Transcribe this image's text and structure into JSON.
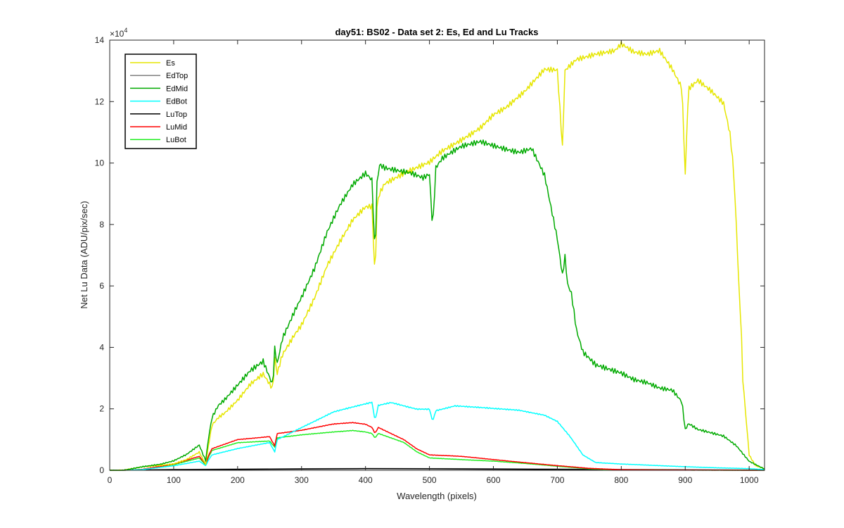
{
  "chart_data": {
    "type": "line",
    "title": "day51: BS02 - Data set 2: Es, Ed and Lu Tracks",
    "xlabel": "Wavelength (pixels)",
    "ylabel": "Net Lu Data (ADU/pix/sec)",
    "xlim": [
      0,
      1024
    ],
    "ylim": [
      0,
      140000
    ],
    "xticks": [
      0,
      100,
      200,
      300,
      400,
      500,
      600,
      700,
      800,
      900,
      1000
    ],
    "yticks": [
      0,
      20000,
      40000,
      60000,
      80000,
      100000,
      120000,
      140000
    ],
    "ytick_labels": [
      "0",
      "2",
      "4",
      "6",
      "8",
      "10",
      "12",
      "14"
    ],
    "y_multiplier": "×10",
    "y_exponent": "4",
    "legend_position": "top-left",
    "series": [
      {
        "name": "Es",
        "color": "#e6e600",
        "x": [
          0,
          20,
          50,
          80,
          100,
          120,
          140,
          150,
          155,
          160,
          170,
          180,
          200,
          220,
          240,
          255,
          258,
          262,
          270,
          290,
          300,
          320,
          340,
          360,
          380,
          400,
          410,
          415,
          418,
          422,
          430,
          450,
          470,
          490,
          500,
          520,
          550,
          580,
          600,
          620,
          650,
          680,
          700,
          708,
          712,
          716,
          730,
          760,
          790,
          800,
          820,
          840,
          860,
          880,
          895,
          900,
          905,
          920,
          940,
          960,
          970,
          975,
          980,
          985,
          987,
          990,
          1000,
          1010,
          1024
        ],
        "y": [
          0,
          0,
          1000,
          1500,
          2000,
          3500,
          6000,
          2000,
          9000,
          15000,
          17500,
          19000,
          23000,
          28000,
          31000,
          26000,
          36000,
          31000,
          37000,
          44000,
          47000,
          56000,
          67000,
          75000,
          82000,
          86000,
          86000,
          62000,
          86000,
          90000,
          93000,
          95000,
          97000,
          99000,
          100000,
          104000,
          108000,
          112000,
          116000,
          118000,
          123000,
          130000,
          130000,
          105000,
          130000,
          131000,
          134000,
          136000,
          137000,
          139000,
          136000,
          135000,
          136000,
          130000,
          124000,
          96000,
          124000,
          127000,
          124000,
          120000,
          110000,
          100000,
          80000,
          55000,
          50000,
          30000,
          5000,
          1500,
          500
        ]
      },
      {
        "name": "EdTop",
        "color": "#7f7f7f",
        "x": [
          0,
          30,
          100,
          200,
          300,
          400,
          500,
          600,
          700,
          800,
          900,
          1000,
          1024
        ],
        "y": [
          0,
          100,
          250,
          400,
          500,
          600,
          550,
          500,
          400,
          300,
          200,
          100,
          50
        ]
      },
      {
        "name": "EdMid",
        "color": "#00aa00",
        "x": [
          0,
          20,
          50,
          80,
          100,
          120,
          140,
          150,
          155,
          160,
          170,
          180,
          200,
          220,
          240,
          255,
          258,
          262,
          270,
          290,
          300,
          320,
          340,
          360,
          380,
          400,
          410,
          415,
          418,
          422,
          430,
          450,
          470,
          490,
          500,
          505,
          510,
          520,
          550,
          580,
          600,
          620,
          640,
          660,
          680,
          700,
          708,
          712,
          716,
          722,
          730,
          740,
          760,
          780,
          800,
          820,
          840,
          860,
          880,
          895,
          900,
          905,
          920,
          940,
          960,
          980,
          1000,
          1024
        ],
        "y": [
          0,
          0,
          1200,
          2000,
          3000,
          5000,
          8000,
          3000,
          11000,
          17000,
          21000,
          23000,
          28000,
          33000,
          36000,
          28000,
          40000,
          35000,
          43000,
          52000,
          56000,
          65000,
          77000,
          86000,
          93000,
          97000,
          95000,
          70000,
          94000,
          100000,
          99000,
          98000,
          97000,
          95000,
          96000,
          78000,
          98000,
          101000,
          105000,
          107000,
          106000,
          105000,
          104000,
          105000,
          96000,
          75000,
          63000,
          69000,
          60000,
          57000,
          45000,
          38000,
          34000,
          33000,
          32000,
          30000,
          29000,
          27000,
          26000,
          22000,
          13000,
          15000,
          13000,
          12000,
          11000,
          8000,
          3000,
          500
        ]
      },
      {
        "name": "EdBot",
        "color": "#00ffff",
        "x": [
          0,
          20,
          50,
          100,
          140,
          150,
          155,
          160,
          200,
          250,
          258,
          262,
          300,
          350,
          400,
          410,
          415,
          420,
          440,
          460,
          480,
          500,
          505,
          510,
          540,
          570,
          600,
          640,
          680,
          700,
          720,
          740,
          760,
          800,
          850,
          900,
          950,
          1000,
          1024
        ],
        "y": [
          0,
          0,
          200,
          1500,
          3000,
          1500,
          3500,
          5000,
          7000,
          9000,
          6000,
          10000,
          14000,
          19000,
          21500,
          22000,
          16000,
          21000,
          22000,
          21000,
          20000,
          20000,
          16000,
          19500,
          21000,
          20500,
          20000,
          19500,
          18000,
          16000,
          11000,
          5000,
          2500,
          2000,
          1600,
          1200,
          800,
          500,
          200
        ]
      },
      {
        "name": "LuTop",
        "color": "#000000",
        "x": [
          0,
          30,
          100,
          200,
          300,
          400,
          500,
          600,
          700,
          800,
          900,
          1000,
          1024
        ],
        "y": [
          0,
          80,
          200,
          300,
          400,
          500,
          450,
          350,
          250,
          150,
          100,
          50,
          20
        ]
      },
      {
        "name": "LuMid",
        "color": "#ff0000",
        "x": [
          0,
          20,
          50,
          100,
          140,
          150,
          155,
          160,
          200,
          250,
          258,
          262,
          300,
          350,
          380,
          400,
          410,
          415,
          420,
          440,
          460,
          480,
          500,
          550,
          600,
          650,
          700,
          750,
          800,
          900,
          1024
        ],
        "y": [
          0,
          0,
          300,
          2000,
          4500,
          2000,
          5000,
          7000,
          10000,
          11000,
          8000,
          12000,
          13000,
          15000,
          15500,
          15000,
          14000,
          12000,
          14000,
          12000,
          10000,
          7000,
          5000,
          4500,
          3500,
          2500,
          1500,
          600,
          200,
          50,
          0
        ]
      },
      {
        "name": "LuBot",
        "color": "#22ee22",
        "x": [
          0,
          20,
          50,
          100,
          140,
          150,
          155,
          160,
          200,
          250,
          258,
          262,
          300,
          350,
          380,
          400,
          410,
          415,
          420,
          440,
          460,
          480,
          500,
          550,
          600,
          650,
          700,
          750,
          800,
          900,
          1024
        ],
        "y": [
          0,
          0,
          250,
          1800,
          4000,
          1800,
          4500,
          6500,
          9000,
          9500,
          7500,
          10500,
          11500,
          12500,
          13000,
          12500,
          12000,
          10500,
          12000,
          10500,
          9000,
          6000,
          4000,
          3500,
          3000,
          2200,
          1300,
          500,
          150,
          50,
          0
        ]
      }
    ]
  }
}
